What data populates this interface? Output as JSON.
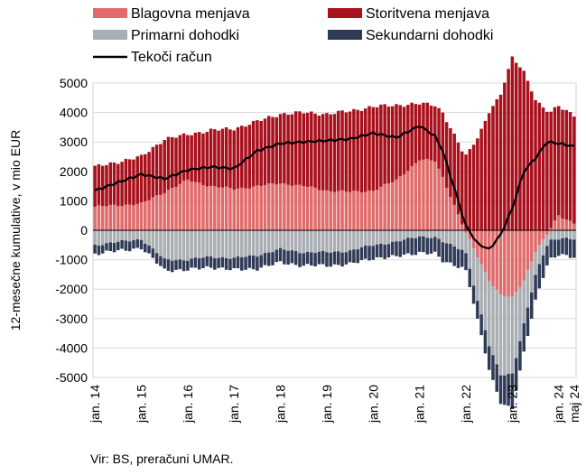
{
  "chart_data": {
    "type": "bar",
    "ylabel": "12-mesečne kumulative, v mio EUR",
    "ylim": [
      -5000,
      5000
    ],
    "yticks": [
      5000,
      4000,
      3000,
      2000,
      1000,
      0,
      -1000,
      -2000,
      -3000,
      -4000,
      -5000
    ],
    "ytick_labels": [
      "5000",
      "4000",
      "3000",
      "2000",
      "1000",
      "0",
      "-1000",
      "-2000",
      "-3000",
      "-4000",
      "-5000"
    ],
    "x_tick_labels": [
      "jan. 14",
      "jan. 15",
      "jan. 16",
      "jan. 17",
      "jan. 18",
      "jan. 19",
      "jan. 20",
      "jan. 21",
      "jan. 22",
      "jan. 23",
      "jan. 24",
      "maj 24"
    ],
    "x_tick_months": [
      0,
      12,
      24,
      36,
      48,
      60,
      72,
      84,
      96,
      108,
      120,
      124
    ],
    "grid": true,
    "legend_position": "top",
    "colors": {
      "Blagovna menjava": "#e06b6b",
      "Storitvena menjava": "#a8101c",
      "Primarni dohodki": "#a9aeb3",
      "Sekundarni dohodki": "#2f3a56",
      "Tekoči račun": "#000000"
    },
    "anchors": {
      "months": [
        0,
        12,
        18,
        24,
        30,
        36,
        42,
        48,
        54,
        60,
        66,
        72,
        78,
        84,
        88,
        90,
        96,
        99,
        102,
        105,
        108,
        111,
        114,
        117,
        120,
        124
      ],
      "series": [
        {
          "name": "Blagovna menjava",
          "values": [
            800,
            900,
            1300,
            1700,
            1500,
            1400,
            1500,
            1600,
            1500,
            1350,
            1300,
            1350,
            1700,
            2400,
            2350,
            1800,
            -100,
            -900,
            -1700,
            -2200,
            -2300,
            -1700,
            -700,
            -150,
            500,
            250
          ]
        },
        {
          "name": "Storitvena menjava",
          "values": [
            1350,
            1600,
            1800,
            1550,
            1900,
            2050,
            2200,
            2350,
            2500,
            2600,
            2750,
            2850,
            2550,
            1900,
            1900,
            2200,
            2550,
            3150,
            4000,
            4600,
            5900,
            5400,
            4400,
            4050,
            3750,
            3650
          ]
        },
        {
          "name": "Primarni dohodki",
          "values": [
            -500,
            -300,
            -1000,
            -1000,
            -900,
            -950,
            -850,
            -650,
            -750,
            -750,
            -700,
            -500,
            -400,
            -200,
            -250,
            -400,
            -700,
            -1500,
            -2200,
            -2700,
            -2600,
            -1500,
            -800,
            -350,
            -300,
            -300
          ]
        },
        {
          "name": "Sekundarni dohodki",
          "values": [
            -300,
            -300,
            -350,
            -350,
            -350,
            -400,
            -450,
            -450,
            -450,
            -450,
            -450,
            -450,
            -500,
            -550,
            -550,
            -650,
            -600,
            -650,
            -800,
            -950,
            -1200,
            -950,
            -850,
            -700,
            -550,
            -600
          ]
        }
      ],
      "line": {
        "name": "Tekoči račun",
        "values": [
          1350,
          1900,
          1750,
          2050,
          2150,
          2100,
          2700,
          2950,
          3000,
          3050,
          3100,
          3300,
          3150,
          3550,
          3200,
          2700,
          150,
          -450,
          -650,
          -150,
          750,
          2000,
          2450,
          3000,
          2950,
          2850
        ]
      }
    },
    "source": "Vir: BS, preračuni UMAR."
  }
}
